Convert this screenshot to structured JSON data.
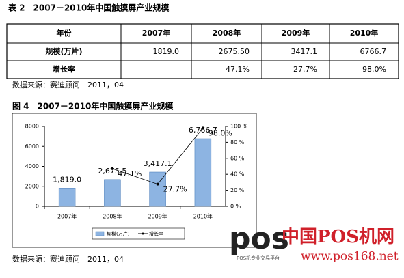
{
  "table_caption": "表 2　2007－2010年中国触摸屏产业规模",
  "table": {
    "header": [
      "年份",
      "2007年",
      "2008年",
      "2009年",
      "2010年"
    ],
    "rows": [
      [
        "规模(万片)",
        "1819.0",
        "2675.50",
        "3417.1",
        "6766.7"
      ],
      [
        "增长率",
        null,
        "47.1%",
        "27.7%",
        "98.0%"
      ]
    ]
  },
  "table_source": "数据来源：赛迪顾问　2011，04",
  "chart_data": {
    "type": "bar",
    "title": "图 4　2007－2010年中国触摸屏产业规模",
    "categories": [
      "2007年",
      "2008年",
      "2009年",
      "2010年"
    ],
    "series": [
      {
        "name": "规模(万片)",
        "type": "bar",
        "color": "#8db4e2",
        "values": [
          1819.0,
          2675.5,
          3417.1,
          6766.7
        ],
        "value_labels": [
          "1,819.0",
          "2,675.5",
          "3,417.1",
          "6,766.7"
        ]
      },
      {
        "name": "增长率",
        "type": "line",
        "axis": "y2",
        "color": "#000000",
        "values": [
          null,
          47.1,
          27.7,
          98.0
        ],
        "value_labels": [
          null,
          "47.1%",
          "27.7%",
          "98.0%"
        ]
      }
    ],
    "ylim": [
      0,
      8000
    ],
    "yticks": [
      0,
      2000,
      4000,
      6000,
      8000
    ],
    "y2lim": [
      0,
      100
    ],
    "y2ticks": [
      {
        "value": 0,
        "label": "0 %"
      },
      {
        "value": 20,
        "label": "20 %"
      },
      {
        "value": 40,
        "label": "40 %"
      },
      {
        "value": 60,
        "label": "60 %"
      },
      {
        "value": 80,
        "label": "80 %"
      },
      {
        "value": 100,
        "label": "100 %"
      }
    ],
    "legend": "bottom"
  },
  "chart_source": "数据来源：赛迪顾问　2011，04",
  "logo": {
    "mark": "pos",
    "name": "中国POS机网",
    "url": "www.pos168.net",
    "tagline": "POS机专业交易平台"
  }
}
